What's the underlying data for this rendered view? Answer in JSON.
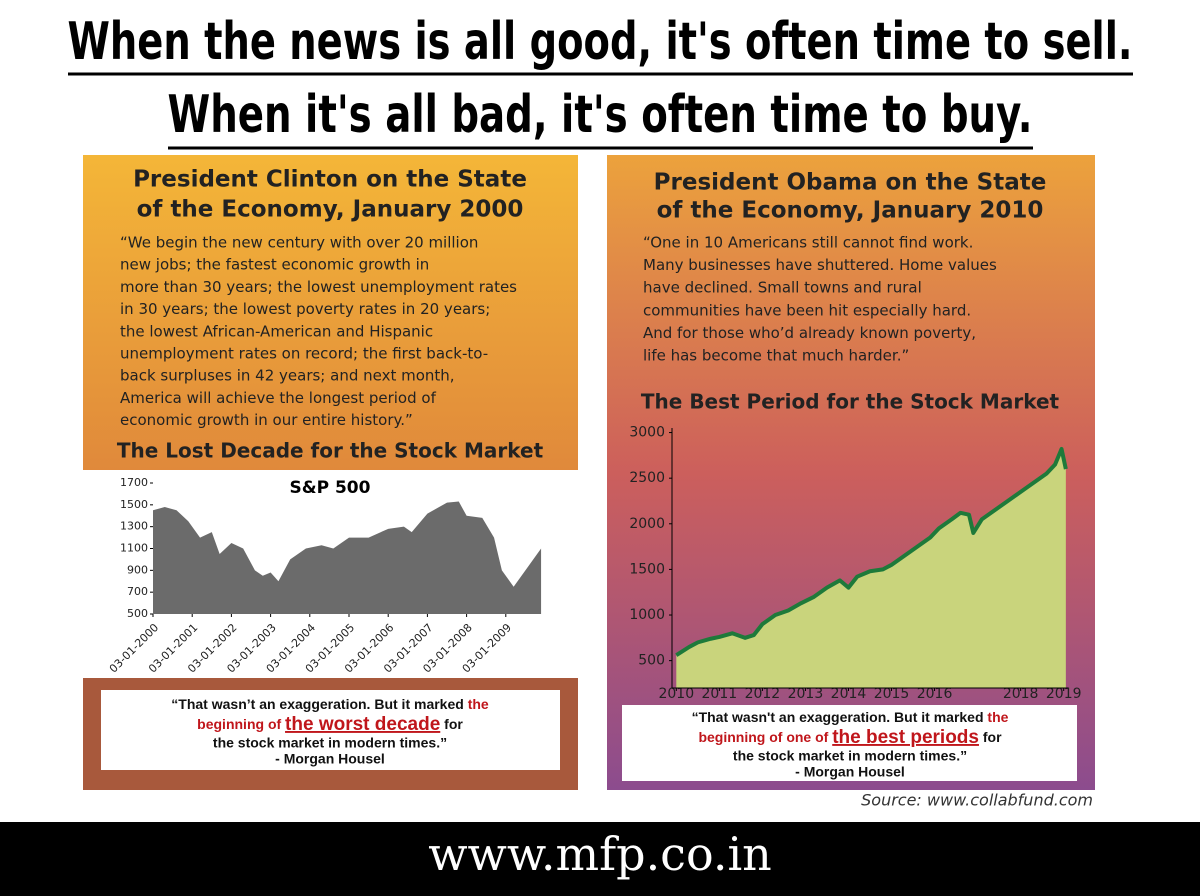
{
  "headline": [
    "When the news is all good, it's often time to sell.",
    "When it's all bad, it's often time to buy."
  ],
  "left_panel": {
    "heading": [
      "President Clinton on the State",
      "of the Economy, January 2000"
    ],
    "quote_lines": [
      "“We begin the new century with over 20 million",
      "new jobs; the fastest economic growth in",
      "more than 30 years; the lowest unemployment rates",
      "in 30 years; the lowest poverty rates in 20 years;",
      "the lowest African-American and Hispanic",
      "unemployment rates on record; the first back-to-",
      "back surpluses in 42 years; and next month,",
      "America will achieve the longest period of",
      "economic growth in our entire history.”"
    ],
    "callout": {
      "lead": "“That wasn’t an exaggeration. But it marked",
      "red_1": "the",
      "red_2": "beginning of",
      "highlight": "the worst decade",
      "tail_1": "for",
      "tail_2": "the stock market in modern times.”",
      "attribution": "- Morgan Housel"
    }
  },
  "right_panel": {
    "heading": [
      "President Obama on the State",
      "of the Economy, January 2010"
    ],
    "quote_lines": [
      "“One in 10 Americans still cannot find work.",
      "Many businesses have shuttered. Home values",
      "have declined. Small towns and rural",
      "communities have been hit especially hard.",
      "And for those who’d already known poverty,",
      "life has become that much harder.”"
    ],
    "callout": {
      "lead": "“That wasn't an exaggeration. But it marked",
      "red_1": "the",
      "red_2": "beginning of one of",
      "highlight": "the best periods",
      "tail_1": "for",
      "tail_2": "the stock market in modern times.”",
      "attribution": "- Morgan Housel"
    }
  },
  "source": "Source: www.collabfund.com",
  "footer": "www.mfp.co.in",
  "chart_data": [
    {
      "type": "area",
      "title": "The Lost Decade for the Stock Market",
      "subtitle": "S&P 500",
      "color": "#6b6b6b",
      "x": [
        2000,
        2000.3,
        2000.6,
        2000.9,
        2001.2,
        2001.5,
        2001.7,
        2002.0,
        2002.3,
        2002.6,
        2002.8,
        2003.0,
        2003.2,
        2003.5,
        2003.9,
        2004.3,
        2004.6,
        2005.0,
        2005.5,
        2006.0,
        2006.4,
        2006.6,
        2007.0,
        2007.5,
        2007.8,
        2008.0,
        2008.4,
        2008.7,
        2008.9,
        2009.2,
        2009.5,
        2009.9
      ],
      "values": [
        1450,
        1480,
        1450,
        1350,
        1200,
        1250,
        1050,
        1150,
        1100,
        900,
        850,
        880,
        800,
        1000,
        1100,
        1130,
        1100,
        1200,
        1200,
        1280,
        1300,
        1250,
        1420,
        1520,
        1530,
        1400,
        1380,
        1200,
        900,
        750,
        900,
        1100
      ],
      "xlim": [
        2000,
        2010
      ],
      "ylim": [
        500,
        1700
      ],
      "xticks": [
        {
          "value": 2000,
          "label": "03-01-2000"
        },
        {
          "value": 2001,
          "label": "03-01-2001"
        },
        {
          "value": 2002,
          "label": "03-01-2002"
        },
        {
          "value": 2003,
          "label": "03-01-2003"
        },
        {
          "value": 2004,
          "label": "03-01-2004"
        },
        {
          "value": 2005,
          "label": "03-01-2005"
        },
        {
          "value": 2006,
          "label": "03-01-2006"
        },
        {
          "value": 2007,
          "label": "03-01-2007"
        },
        {
          "value": 2008,
          "label": "03-01-2008"
        },
        {
          "value": 2009,
          "label": "03-01-2009"
        }
      ],
      "yticks": [
        500,
        700,
        900,
        1100,
        1300,
        1500,
        1700
      ]
    },
    {
      "type": "line",
      "title": "The Best Period for the Stock Market",
      "color": "#1e7a3a",
      "area_color": "#c9d47c",
      "x": [
        2010.0,
        2010.3,
        2010.5,
        2010.8,
        2011.0,
        2011.3,
        2011.6,
        2011.8,
        2012.0,
        2012.3,
        2012.6,
        2012.9,
        2013.2,
        2013.5,
        2013.8,
        2014.0,
        2014.2,
        2014.5,
        2014.8,
        2015.0,
        2015.3,
        2015.6,
        2015.9,
        2016.1,
        2016.4,
        2016.6,
        2016.8,
        2016.9,
        2017.1,
        2017.4,
        2017.7,
        2018.0,
        2018.3,
        2018.6,
        2018.8,
        2018.95,
        2019.05
      ],
      "values": [
        560,
        650,
        700,
        740,
        760,
        800,
        750,
        780,
        900,
        1000,
        1050,
        1130,
        1200,
        1300,
        1380,
        1300,
        1420,
        1480,
        1500,
        1550,
        1650,
        1750,
        1850,
        1950,
        2050,
        2120,
        2100,
        1900,
        2050,
        2150,
        2250,
        2350,
        2450,
        2550,
        2650,
        2820,
        2600
      ],
      "xlim": [
        2009.9,
        2019.1
      ],
      "ylim": [
        200,
        3050
      ],
      "xticks": [
        2010,
        2011,
        2012,
        2013,
        2014,
        2015,
        2016,
        2018,
        2019
      ],
      "yticks": [
        500,
        1000,
        1500,
        2000,
        2500,
        3000
      ]
    }
  ]
}
